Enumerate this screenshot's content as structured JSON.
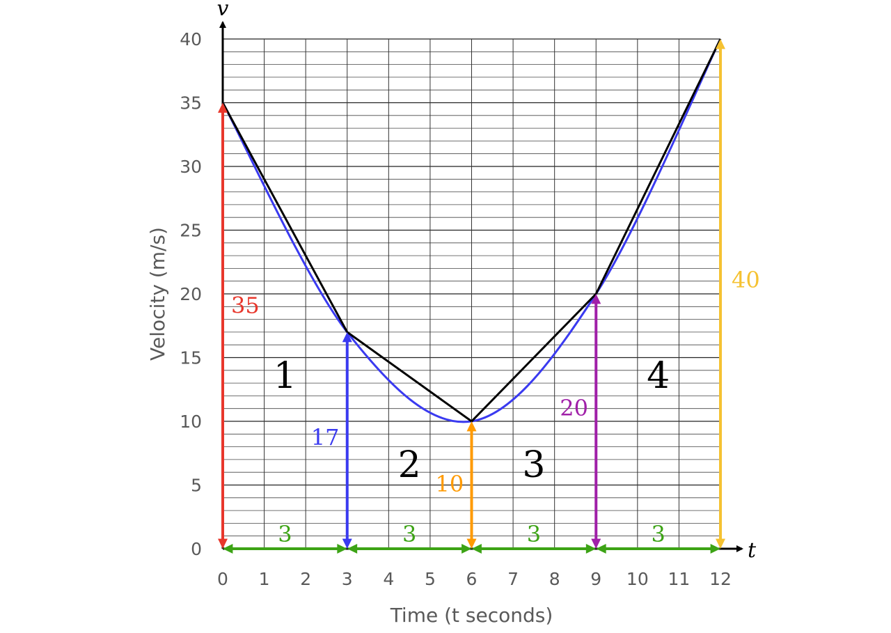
{
  "chart_data": {
    "type": "line",
    "title": "",
    "xlabel": "Time (t seconds)",
    "ylabel": "Velocity (m/s)",
    "x_axis_var": "t",
    "y_axis_var": "v",
    "xlim": [
      0,
      12
    ],
    "ylim": [
      0,
      40
    ],
    "x_ticks": [
      0,
      1,
      2,
      3,
      4,
      5,
      6,
      7,
      8,
      9,
      10,
      11,
      12
    ],
    "y_ticks": [
      0,
      5,
      10,
      15,
      20,
      25,
      30,
      35,
      40
    ],
    "grid": true,
    "curve": {
      "color": "#3a3af0",
      "description": "smooth velocity curve through the sample points",
      "points": [
        [
          0,
          35
        ],
        [
          3,
          17
        ],
        [
          6,
          10
        ],
        [
          9,
          20
        ],
        [
          12,
          40
        ]
      ]
    },
    "trapezium_lines": {
      "color": "#000000",
      "points": [
        [
          0,
          35
        ],
        [
          3,
          17
        ],
        [
          6,
          10
        ],
        [
          9,
          20
        ],
        [
          12,
          40
        ]
      ]
    },
    "ordinates": [
      {
        "x": 0,
        "value": 35,
        "label": "35",
        "color": "#e8372c"
      },
      {
        "x": 3,
        "value": 17,
        "label": "17",
        "color": "#3a3af0"
      },
      {
        "x": 6,
        "value": 10,
        "label": "10",
        "color": "#ff9a00"
      },
      {
        "x": 9,
        "value": 20,
        "label": "20",
        "color": "#a020a8"
      },
      {
        "x": 12,
        "value": 40,
        "label": "40",
        "color": "#f5c232"
      }
    ],
    "strip_widths": [
      {
        "from": 0,
        "to": 3,
        "label": "3"
      },
      {
        "from": 3,
        "to": 6,
        "label": "3"
      },
      {
        "from": 6,
        "to": 9,
        "label": "3"
      },
      {
        "from": 9,
        "to": 12,
        "label": "3"
      }
    ],
    "width_color": "#3ca315",
    "regions": [
      {
        "label": "1",
        "x": 1.5,
        "y": 14
      },
      {
        "label": "2",
        "x": 4.5,
        "y": 7
      },
      {
        "label": "3",
        "x": 7.5,
        "y": 7
      },
      {
        "label": "4",
        "x": 10.5,
        "y": 14
      }
    ]
  }
}
